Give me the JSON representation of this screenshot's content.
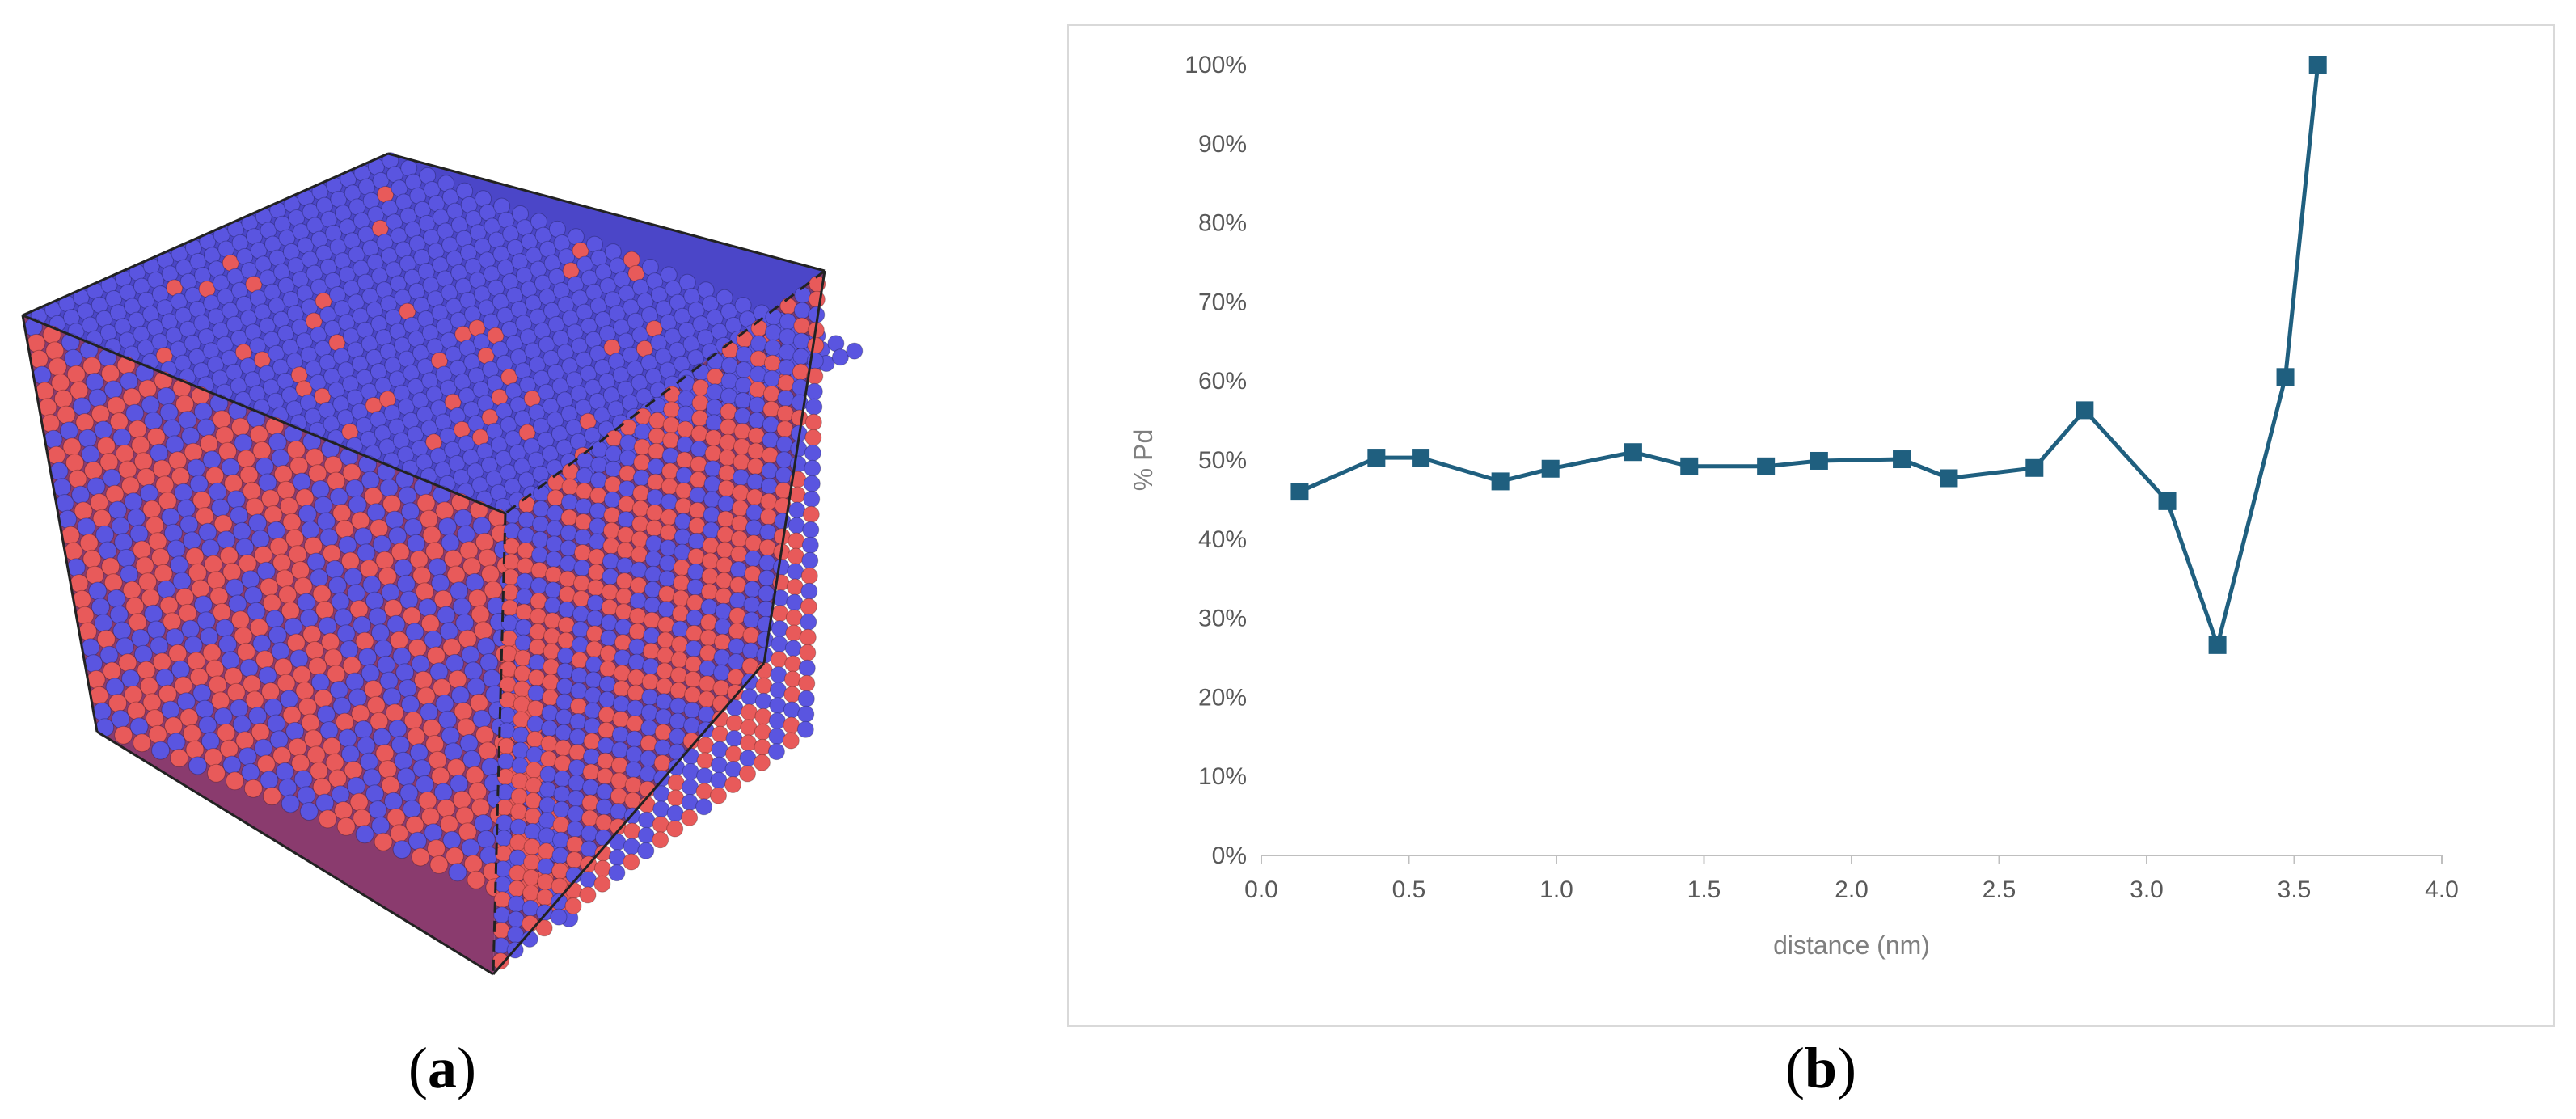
{
  "panel_a": {
    "caption_letter": "a",
    "colors": {
      "blue_atom": "#5a55e0",
      "red_atom": "#e85a5a",
      "edge": "#222222"
    }
  },
  "panel_b": {
    "caption_letter": "b"
  },
  "chart_data": {
    "type": "line",
    "title": "",
    "xlabel": "distance (nm)",
    "ylabel": "% Pd",
    "xlim": [
      0.0,
      4.0
    ],
    "ylim": [
      0,
      100
    ],
    "x_ticks": [
      "0.0",
      "0.5",
      "1.0",
      "1.5",
      "2.0",
      "2.5",
      "3.0",
      "3.5",
      "4.0"
    ],
    "y_ticks": [
      "0%",
      "10%",
      "20%",
      "30%",
      "40%",
      "50%",
      "60%",
      "70%",
      "80%",
      "90%",
      "100%"
    ],
    "grid": false,
    "legend": "none",
    "series": [
      {
        "color": "#1f5f7f",
        "marker": "square",
        "x": [
          0.13,
          0.39,
          0.54,
          0.81,
          0.98,
          1.26,
          1.45,
          1.71,
          1.89,
          2.17,
          2.33,
          2.62,
          2.79,
          3.07,
          3.24,
          3.47,
          3.58
        ],
        "y": [
          46,
          50.3,
          50.3,
          47.3,
          48.9,
          51.0,
          49.2,
          49.2,
          49.9,
          50.1,
          47.7,
          49.0,
          56.3,
          44.8,
          26.6,
          60.5,
          100
        ]
      }
    ]
  }
}
